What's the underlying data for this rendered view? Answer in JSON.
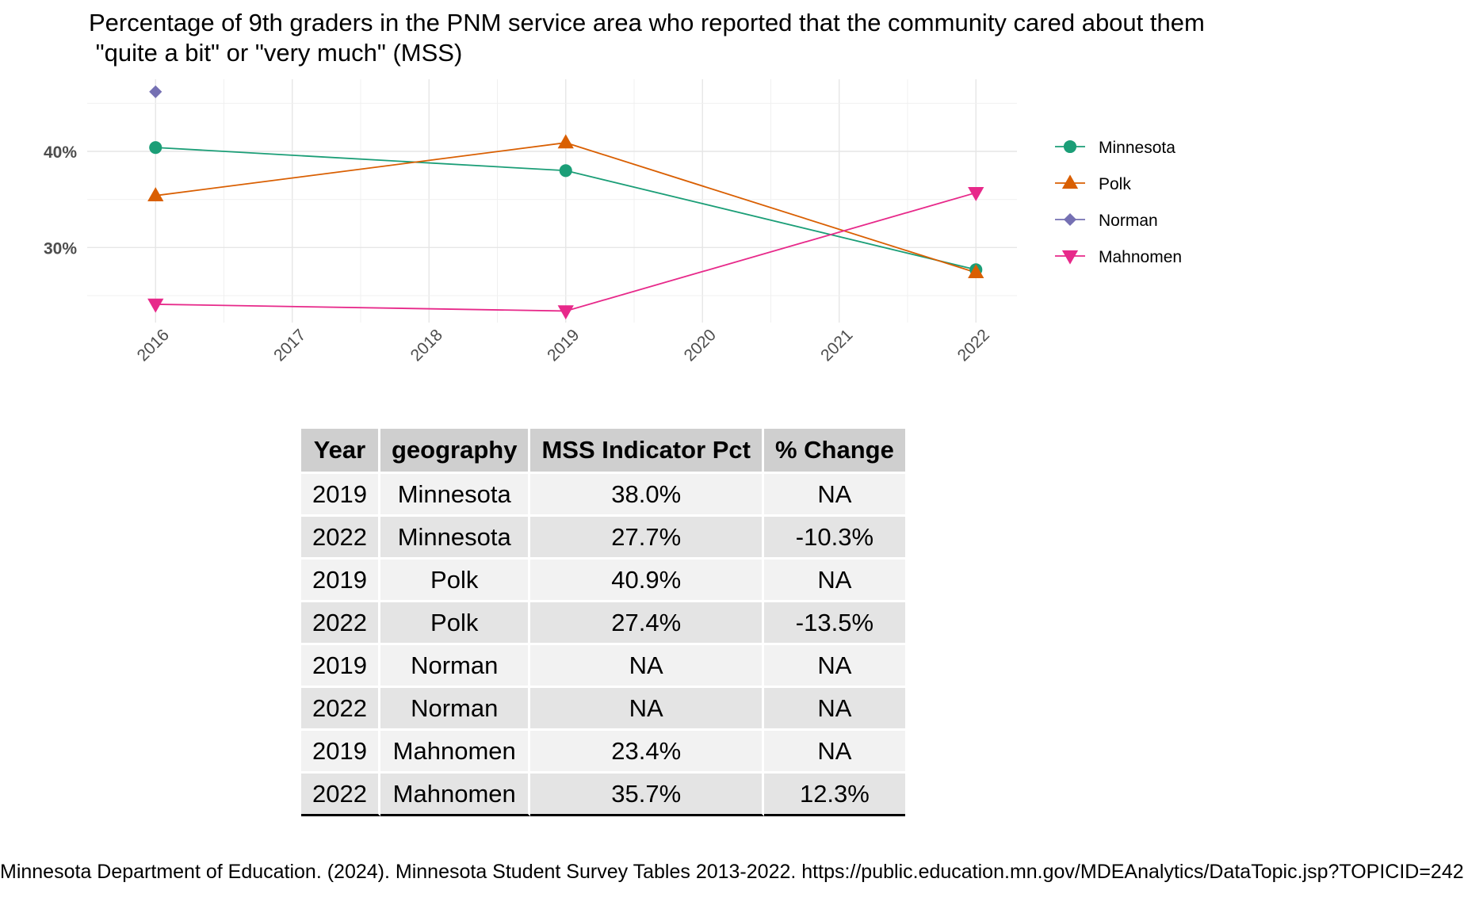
{
  "chart_data": {
    "type": "line",
    "title": "Percentage of 9th graders in the PNM service area who reported that the community cared about them\n \"quite a bit\" or \"very much\" (MSS)",
    "xlabel": "",
    "ylabel": "",
    "x_ticks": [
      "2016",
      "2017",
      "2018",
      "2019",
      "2020",
      "2021",
      "2022"
    ],
    "y_ticks": [
      "30%",
      "40%"
    ],
    "xlim": [
      2015.5,
      2022.3
    ],
    "ylim": [
      22.2,
      47.5
    ],
    "grid": true,
    "legend_position": "right",
    "series": [
      {
        "name": "Minnesota",
        "color": "#1b9e77",
        "marker": "circle",
        "points": [
          [
            2016,
            40.4
          ],
          [
            2019,
            38.0
          ],
          [
            2022,
            27.7
          ]
        ]
      },
      {
        "name": "Polk",
        "color": "#d95f02",
        "marker": "triangle-up",
        "points": [
          [
            2016,
            35.4
          ],
          [
            2019,
            40.9
          ],
          [
            2022,
            27.4
          ]
        ]
      },
      {
        "name": "Norman",
        "color": "#7570b3",
        "marker": "diamond",
        "points": [
          [
            2016,
            46.2
          ]
        ]
      },
      {
        "name": "Mahnomen",
        "color": "#e7298a",
        "marker": "triangle-down",
        "points": [
          [
            2016,
            24.1
          ],
          [
            2019,
            23.4
          ],
          [
            2022,
            35.7
          ]
        ]
      }
    ]
  },
  "table": {
    "headers": [
      "Year",
      "geography",
      "MSS Indicator Pct",
      "% Change"
    ],
    "rows": [
      [
        "2019",
        "Minnesota",
        "38.0%",
        "NA"
      ],
      [
        "2022",
        "Minnesota",
        "27.7%",
        "-10.3%"
      ],
      [
        "2019",
        "Polk",
        "40.9%",
        "NA"
      ],
      [
        "2022",
        "Polk",
        "27.4%",
        "-13.5%"
      ],
      [
        "2019",
        "Norman",
        "NA",
        "NA"
      ],
      [
        "2022",
        "Norman",
        "NA",
        "NA"
      ],
      [
        "2019",
        "Mahnomen",
        "23.4%",
        "NA"
      ],
      [
        "2022",
        "Mahnomen",
        "35.7%",
        "12.3%"
      ]
    ]
  },
  "caption": "Minnesota Department of Education. (2024). Minnesota Student Survey Tables 2013-2022. https://public.education.mn.gov/MDEAnalytics/DataTopic.jsp?TOPICID=242"
}
